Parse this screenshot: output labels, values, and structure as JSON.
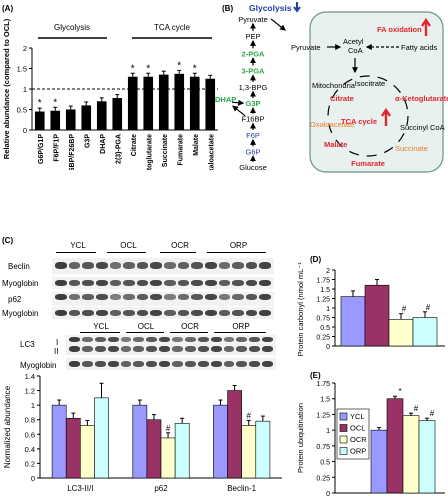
{
  "panels": {
    "A": {
      "label": "(A)",
      "group_labels": [
        "Glycolysis",
        "TCA cycle"
      ],
      "chart_data": {
        "type": "bar",
        "ylabel": "Relative abundance (compared to OCL)",
        "ylim": [
          0,
          2
        ],
        "yticks": [
          "0",
          "0.5",
          "1",
          "1.5",
          "2"
        ],
        "reference_line": 1,
        "categories": [
          "G6P/G1P",
          "F6P/F1P",
          "F16BP/F26BP",
          "G3P",
          "DHAP",
          "2(3)-PGA",
          "Citrate",
          "α-Ketoglutarate",
          "Succinate",
          "Fumarate",
          "Malate",
          "Oxaloacetate"
        ],
        "values": [
          0.45,
          0.47,
          0.5,
          0.6,
          0.7,
          0.78,
          1.3,
          1.3,
          1.35,
          1.37,
          1.3,
          1.25
        ],
        "significance": [
          "*",
          "*",
          "",
          "",
          "",
          "",
          "*",
          "*",
          "",
          "*",
          "*",
          ""
        ]
      }
    },
    "B": {
      "label": "(B)",
      "title": "Glycolysis",
      "glycolysis_chain": [
        "Pyruvate",
        "PEP",
        "2-PGA",
        "3-PGA",
        "1,3-BPG",
        "G3P",
        "F16BP",
        "F6P",
        "G6P",
        "Glucose"
      ],
      "dhap": "DHAP",
      "mito": {
        "label": "Mitochondria",
        "pyruvate": "Pyruvate",
        "acetyl_coa": "Acetyl CoA",
        "fatty_acids": "Fatty acids",
        "fa_oxidation": "FA oxidation",
        "cycle": [
          "Isocitrate",
          "Citrate",
          "α-Ketoglutarate",
          "Succinyl CoA",
          "Succinate",
          "Fumarate",
          "Malate",
          "Oxaloacetate"
        ],
        "tca_cycle": "TCA cycle"
      },
      "colors": {
        "up": "#e3262b",
        "down": "#e87e25",
        "green": "#2fa84a",
        "blue": "#2340a6"
      }
    },
    "C": {
      "label": "(C)",
      "blot_groups": [
        "YCL",
        "OCL",
        "OCR",
        "ORP"
      ],
      "blot_labels_top": [
        "Beclin",
        "Myoglobin",
        "p62",
        "Myoglobin"
      ],
      "blot_labels_bottom": [
        "LC3",
        "I",
        "II",
        "Myoglobin"
      ],
      "chart_data": {
        "type": "bar",
        "ylabel": "Normalized abundance",
        "ylim": [
          0,
          1.4
        ],
        "yticks": [
          "0",
          "0.2",
          "0.4",
          "0.6",
          "0.8",
          "1",
          "1.2",
          "1.4"
        ],
        "categories": [
          "LC3-II/I",
          "p62",
          "Beclin-1"
        ],
        "series": [
          {
            "name": "YCL",
            "values": [
              1.0,
              1.0,
              1.0
            ]
          },
          {
            "name": "OCL",
            "values": [
              0.82,
              0.8,
              1.2
            ]
          },
          {
            "name": "OCR",
            "values": [
              0.72,
              0.55,
              0.72
            ]
          },
          {
            "name": "ORP",
            "values": [
              1.1,
              0.75,
              0.78
            ]
          }
        ],
        "significance": [
          [
            "",
            "",
            "",
            ""
          ],
          [
            "",
            "",
            "#",
            ""
          ],
          [
            "",
            "",
            "#",
            ""
          ]
        ]
      }
    },
    "D": {
      "label": "(D)",
      "chart_data": {
        "type": "bar",
        "ylabel": "Protein carbonyl (nmol mL⁻¹)",
        "ylim": [
          0,
          2
        ],
        "yticks": [
          "0",
          "0.25",
          "0.5",
          "0.75",
          "1",
          "1.25",
          "1.5",
          "1.75",
          "2"
        ],
        "categories": [
          "YCL",
          "OCL",
          "OCR",
          "ORP"
        ],
        "values": [
          1.3,
          1.6,
          0.7,
          0.75
        ],
        "significance": [
          "",
          "",
          "#",
          "#"
        ]
      }
    },
    "E": {
      "label": "(E)",
      "chart_data": {
        "type": "bar",
        "ylabel": "Protein ubiquitination",
        "ylim": [
          0,
          1.75
        ],
        "yticks": [
          "0",
          "0.25",
          "0.5",
          "0.75",
          "1",
          "1.25",
          "1.5",
          "1.75"
        ],
        "categories": [
          "YCL",
          "OCL",
          "OCR",
          "ORP"
        ],
        "values": [
          1.0,
          1.5,
          1.23,
          1.15
        ],
        "significance": [
          "",
          "*",
          "#",
          "#"
        ]
      },
      "legend": [
        "YCL",
        "OCL",
        "OCR",
        "ORP"
      ]
    },
    "group_colors": [
      "#9999ff",
      "#993366",
      "#ffffcc",
      "#ccffff"
    ]
  }
}
